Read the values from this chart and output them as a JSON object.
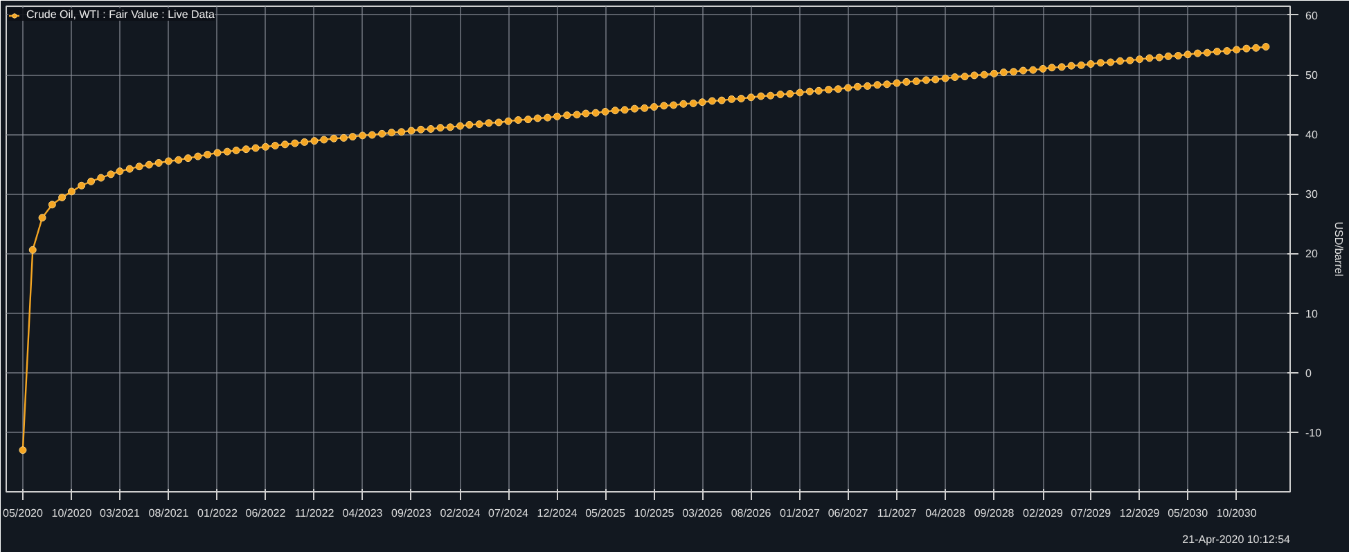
{
  "chart_data": {
    "type": "line",
    "ylabel": "USD/barrel",
    "annotations": [
      "21-Apr-2020 10:12:54"
    ],
    "x": [
      "2020-05",
      "2020-06",
      "2020-07",
      "2020-08",
      "2020-09",
      "2020-10",
      "2020-11",
      "2020-12",
      "2021-01",
      "2021-02",
      "2021-03",
      "2021-04",
      "2021-05",
      "2021-06",
      "2021-07",
      "2021-08",
      "2021-09",
      "2021-10",
      "2021-11",
      "2021-12",
      "2022-01",
      "2022-02",
      "2022-03",
      "2022-04",
      "2022-05",
      "2022-06",
      "2022-07",
      "2022-08",
      "2022-09",
      "2022-10",
      "2022-11",
      "2022-12",
      "2023-01",
      "2023-02",
      "2023-03",
      "2023-04",
      "2023-05",
      "2023-06",
      "2023-07",
      "2023-08",
      "2023-09",
      "2023-10",
      "2023-11",
      "2023-12",
      "2024-01",
      "2024-02",
      "2024-03",
      "2024-04",
      "2024-05",
      "2024-06",
      "2024-07",
      "2024-08",
      "2024-09",
      "2024-10",
      "2024-11",
      "2024-12",
      "2025-01",
      "2025-02",
      "2025-03",
      "2025-04",
      "2025-05",
      "2025-06",
      "2025-07",
      "2025-08",
      "2025-09",
      "2025-10",
      "2025-11",
      "2025-12",
      "2026-01",
      "2026-02",
      "2026-03",
      "2026-04",
      "2026-05",
      "2026-06",
      "2026-07",
      "2026-08",
      "2026-09",
      "2026-10",
      "2026-11",
      "2026-12",
      "2027-01",
      "2027-02",
      "2027-03",
      "2027-04",
      "2027-05",
      "2027-06",
      "2027-07",
      "2027-08",
      "2027-09",
      "2027-10",
      "2027-11",
      "2027-12",
      "2028-01",
      "2028-02",
      "2028-03",
      "2028-04",
      "2028-05",
      "2028-06",
      "2028-07",
      "2028-08",
      "2028-09",
      "2028-10",
      "2028-11",
      "2028-12",
      "2029-01",
      "2029-02",
      "2029-03",
      "2029-04",
      "2029-05",
      "2029-06",
      "2029-07",
      "2029-08",
      "2029-09",
      "2029-10",
      "2029-11",
      "2029-12",
      "2030-01",
      "2030-02",
      "2030-03",
      "2030-04",
      "2030-05",
      "2030-06",
      "2030-07",
      "2030-08",
      "2030-09",
      "2030-10",
      "2030-11",
      "2030-12",
      "2031-01"
    ],
    "series": [
      {
        "name": "Crude Oil, WTI : Fair Value : Live Data",
        "color": "#f5a623",
        "values": [
          -13,
          20.6,
          26.0,
          28.2,
          29.4,
          30.4,
          31.4,
          32.1,
          32.7,
          33.3,
          33.8,
          34.2,
          34.6,
          34.9,
          35.2,
          35.5,
          35.7,
          36.0,
          36.3,
          36.6,
          36.9,
          37.1,
          37.3,
          37.5,
          37.7,
          37.9,
          38.1,
          38.3,
          38.5,
          38.7,
          38.9,
          39.1,
          39.3,
          39.4,
          39.6,
          39.8,
          39.9,
          40.1,
          40.3,
          40.4,
          40.6,
          40.8,
          40.9,
          41.1,
          41.2,
          41.4,
          41.6,
          41.7,
          41.9,
          42.0,
          42.2,
          42.4,
          42.5,
          42.7,
          42.8,
          43.0,
          43.2,
          43.3,
          43.5,
          43.6,
          43.8,
          44.0,
          44.1,
          44.3,
          44.4,
          44.6,
          44.8,
          44.9,
          45.1,
          45.2,
          45.4,
          45.6,
          45.7,
          45.9,
          46.0,
          46.2,
          46.4,
          46.5,
          46.7,
          46.8,
          47.0,
          47.2,
          47.3,
          47.5,
          47.6,
          47.8,
          48.0,
          48.1,
          48.3,
          48.4,
          48.6,
          48.8,
          48.9,
          49.1,
          49.2,
          49.4,
          49.6,
          49.7,
          49.9,
          50.0,
          50.2,
          50.4,
          50.5,
          50.7,
          50.8,
          51.0,
          51.2,
          51.3,
          51.5,
          51.6,
          51.8,
          52.0,
          52.1,
          52.3,
          52.4,
          52.6,
          52.8,
          52.9,
          53.1,
          53.2,
          53.4,
          53.6,
          53.7,
          53.9,
          54.0,
          54.2,
          54.4,
          54.5,
          54.7
        ]
      }
    ],
    "xlim": [
      "2020-03-10",
      "2031-03-18"
    ],
    "xticks": [
      {
        "value": "2020-05",
        "label": "05/2020"
      },
      {
        "value": "2020-10",
        "label": "10/2020"
      },
      {
        "value": "2021-03",
        "label": "03/2021"
      },
      {
        "value": "2021-08",
        "label": "08/2021"
      },
      {
        "value": "2022-01",
        "label": "01/2022"
      },
      {
        "value": "2022-06",
        "label": "06/2022"
      },
      {
        "value": "2022-11",
        "label": "11/2022"
      },
      {
        "value": "2023-04",
        "label": "04/2023"
      },
      {
        "value": "2023-09",
        "label": "09/2023"
      },
      {
        "value": "2024-02",
        "label": "02/2024"
      },
      {
        "value": "2024-07",
        "label": "07/2024"
      },
      {
        "value": "2024-12",
        "label": "12/2024"
      },
      {
        "value": "2025-05",
        "label": "05/2025"
      },
      {
        "value": "2025-10",
        "label": "10/2025"
      },
      {
        "value": "2026-03",
        "label": "03/2026"
      },
      {
        "value": "2026-08",
        "label": "08/2026"
      },
      {
        "value": "2027-01",
        "label": "01/2027"
      },
      {
        "value": "2027-06",
        "label": "06/2027"
      },
      {
        "value": "2027-11",
        "label": "11/2027"
      },
      {
        "value": "2028-04",
        "label": "04/2028"
      },
      {
        "value": "2028-09",
        "label": "09/2028"
      },
      {
        "value": "2029-02",
        "label": "02/2029"
      },
      {
        "value": "2029-07",
        "label": "07/2029"
      },
      {
        "value": "2029-12",
        "label": "12/2029"
      },
      {
        "value": "2030-05",
        "label": "05/2030"
      },
      {
        "value": "2030-10",
        "label": "10/2030"
      }
    ],
    "ylim": [
      -20,
      61.5
    ],
    "yticks": [
      -10,
      0,
      10,
      20,
      30,
      40,
      50,
      60
    ],
    "grid": true,
    "legend": "top left",
    "marker": "circle",
    "line_style": "solid"
  }
}
